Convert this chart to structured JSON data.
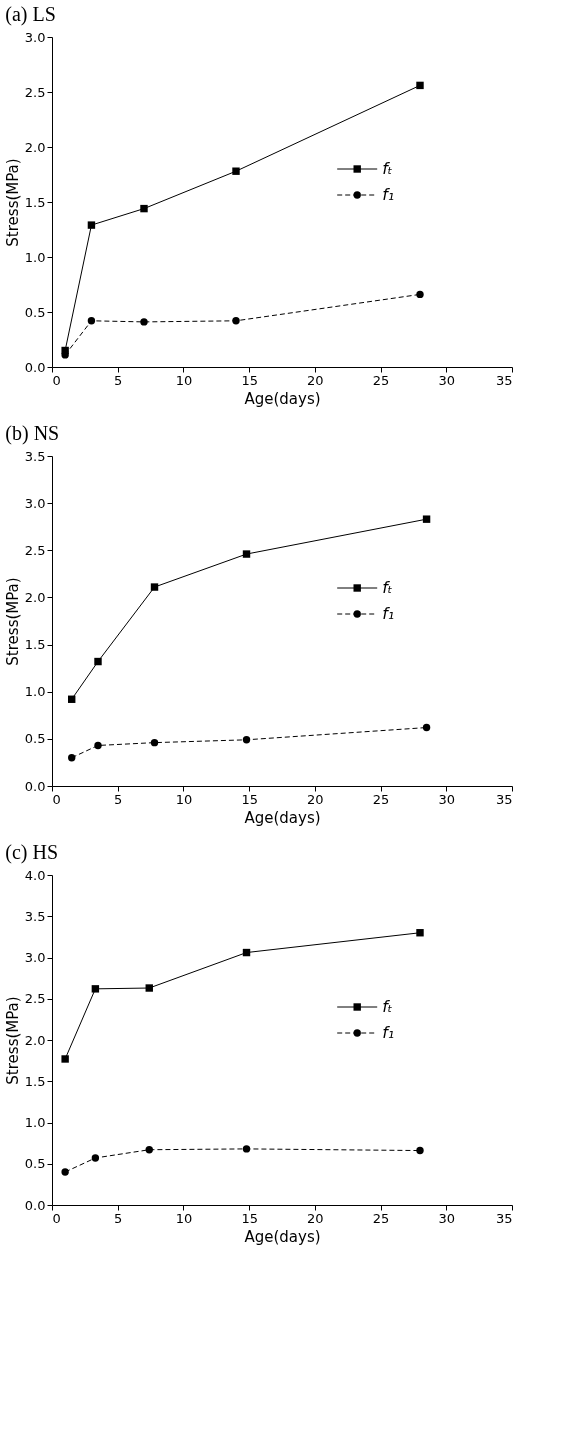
{
  "chart_data": [
    {
      "type": "line",
      "title": "(a) LS",
      "xlabel": "Age(days)",
      "ylabel": "Stress(MPa)",
      "xlim": [
        0,
        35
      ],
      "xticks": [
        0,
        5,
        10,
        15,
        20,
        25,
        30,
        35
      ],
      "ylim": [
        0,
        3.0
      ],
      "yticks": [
        {
          "value": 0,
          "label": "0.0"
        },
        0.5,
        {
          "value": 1,
          "label": "1.0"
        },
        1.5,
        {
          "value": 2,
          "label": "2.0"
        },
        2.5,
        {
          "value": 3,
          "label": "3.0"
        }
      ],
      "grid": false,
      "legend": "right",
      "series": [
        {
          "name": "fₜ",
          "color": "#000000",
          "marker": "square",
          "line_style": "solid",
          "x": [
            1,
            3,
            7,
            14,
            28
          ],
          "values": [
            0.15,
            1.29,
            1.44,
            1.78,
            2.56
          ]
        },
        {
          "name": "f₁",
          "color": "#000000",
          "marker": "circle",
          "line_style": "dashed",
          "x": [
            1,
            3,
            7,
            14,
            28
          ],
          "values": [
            0.11,
            0.42,
            0.41,
            0.42,
            0.66
          ]
        }
      ]
    },
    {
      "type": "line",
      "title": "(b) NS",
      "xlabel": "Age(days)",
      "ylabel": "Stress(MPa)",
      "xlim": [
        0,
        35
      ],
      "xticks": [
        0,
        5,
        10,
        15,
        20,
        25,
        30,
        35
      ],
      "ylim": [
        0,
        3.5
      ],
      "yticks": [
        {
          "value": 0,
          "label": "0.0"
        },
        0.5,
        {
          "value": 1,
          "label": "1.0"
        },
        1.5,
        {
          "value": 2,
          "label": "2.0"
        },
        2.5,
        {
          "value": 3,
          "label": "3.0"
        },
        3.5
      ],
      "grid": false,
      "legend": "right",
      "series": [
        {
          "name": "fₜ",
          "color": "#000000",
          "marker": "square",
          "line_style": "solid",
          "x": [
            1.5,
            3.5,
            7.8,
            14.8,
            28.5
          ],
          "values": [
            0.92,
            1.32,
            2.11,
            2.46,
            2.83
          ]
        },
        {
          "name": "f₁",
          "color": "#000000",
          "marker": "circle",
          "line_style": "dashed",
          "x": [
            1.5,
            3.5,
            7.8,
            14.8,
            28.5
          ],
          "values": [
            0.3,
            0.43,
            0.46,
            0.49,
            0.62
          ]
        }
      ]
    },
    {
      "type": "line",
      "title": "(c) HS",
      "xlabel": "Age(days)",
      "ylabel": "Stress(MPa)",
      "xlim": [
        0,
        35
      ],
      "xticks": [
        0,
        5,
        10,
        15,
        20,
        25,
        30,
        35
      ],
      "ylim": [
        0,
        4.0
      ],
      "yticks": [
        {
          "value": 0,
          "label": "0.0"
        },
        0.5,
        {
          "value": 1,
          "label": "1.0"
        },
        1.5,
        {
          "value": 2,
          "label": "2.0"
        },
        2.5,
        {
          "value": 3,
          "label": "3.0"
        },
        3.5,
        {
          "value": 4,
          "label": "4.0"
        }
      ],
      "grid": false,
      "legend": "right",
      "series": [
        {
          "name": "fₜ",
          "color": "#000000",
          "marker": "square",
          "line_style": "solid",
          "x": [
            1,
            3.3,
            7.4,
            14.8,
            28
          ],
          "values": [
            1.77,
            2.62,
            2.63,
            3.06,
            3.3
          ]
        },
        {
          "name": "f₁",
          "color": "#000000",
          "marker": "circle",
          "line_style": "dashed",
          "x": [
            1,
            3.3,
            7.4,
            14.8,
            28
          ],
          "values": [
            0.4,
            0.57,
            0.67,
            0.68,
            0.66
          ]
        }
      ]
    }
  ]
}
